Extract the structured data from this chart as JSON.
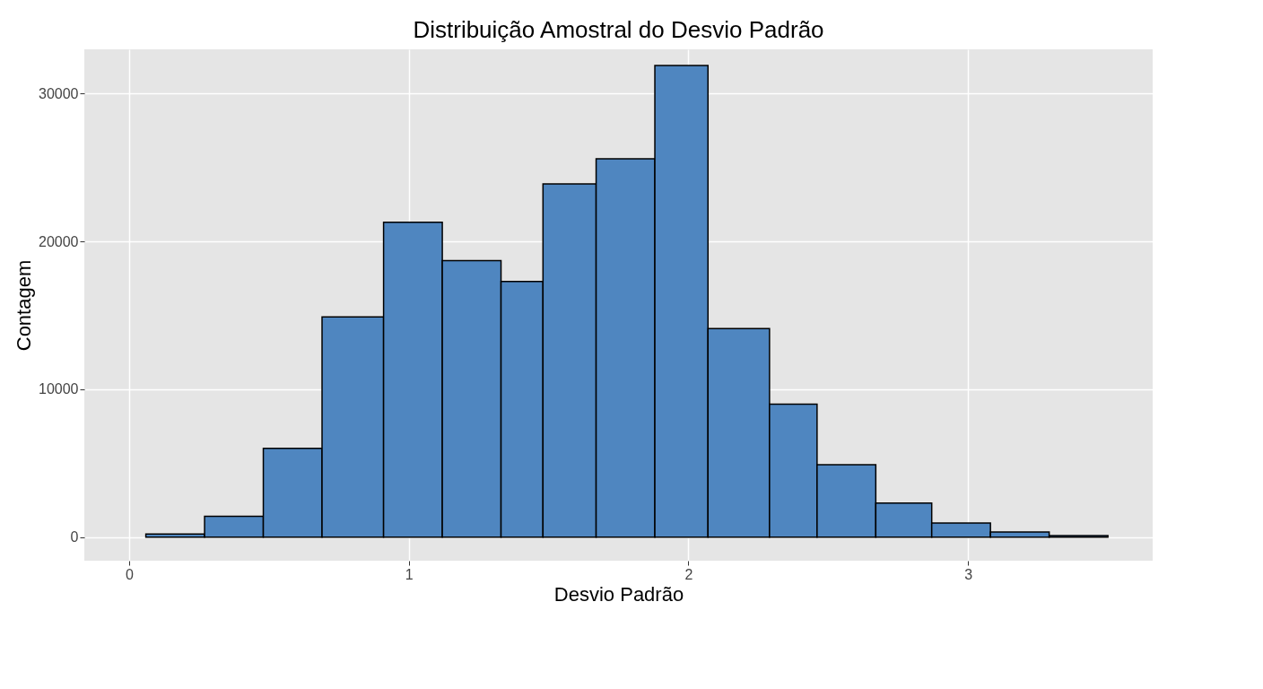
{
  "chart_data": {
    "type": "histogram",
    "title": "Distribuição Amostral do Desvio Padrão",
    "xlabel": "Desvio Padrão",
    "ylabel": "Contagem",
    "bins": [
      0.06,
      0.27,
      0.48,
      0.69,
      0.91,
      1.12,
      1.33,
      1.48,
      1.67,
      1.88,
      2.07,
      2.29,
      2.46,
      2.67,
      2.87,
      3.08,
      3.29,
      3.5
    ],
    "values": [
      200,
      1400,
      6000,
      14900,
      21300,
      18700,
      17300,
      23900,
      25600,
      31900,
      14100,
      9000,
      4900,
      2300,
      950,
      350,
      100
    ],
    "color": "#4f86c0",
    "xlim": [
      -0.16,
      3.66
    ],
    "ylim": [
      -1600,
      33000
    ],
    "xticks": [
      0,
      1,
      2,
      3
    ],
    "yticks": [
      0,
      10000,
      20000,
      30000
    ],
    "grid": true
  }
}
